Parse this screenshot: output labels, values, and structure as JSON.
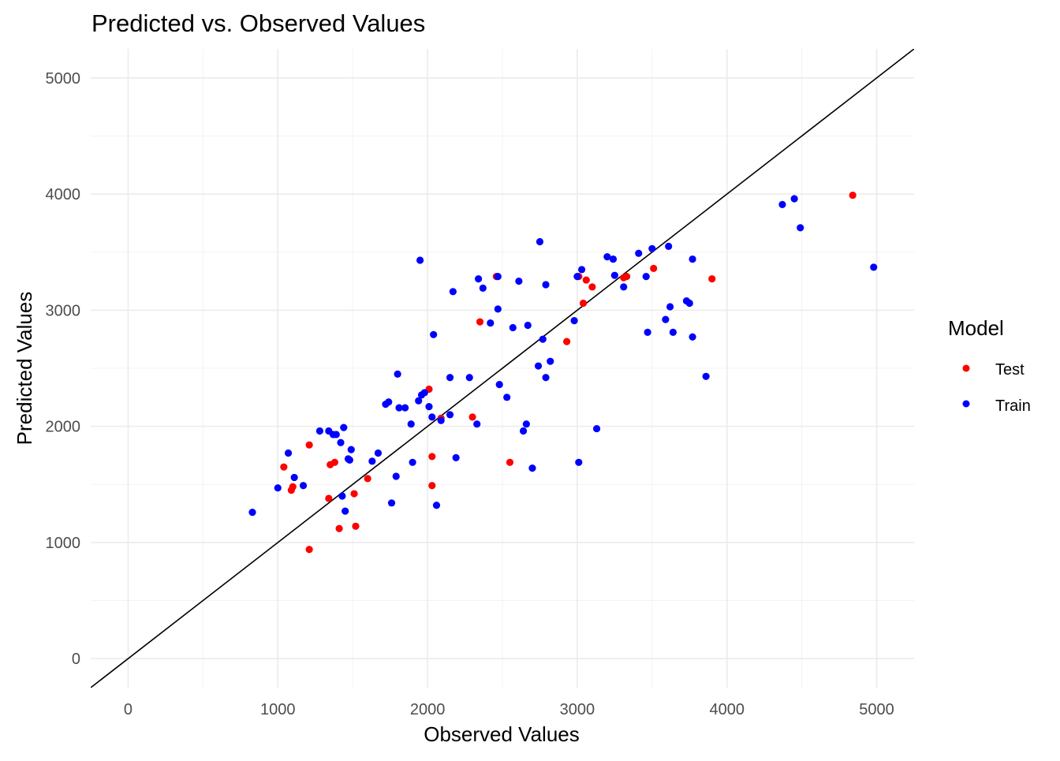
{
  "chart_data": {
    "type": "scatter",
    "title": "Predicted vs. Observed Values",
    "xlabel": "Observed Values",
    "ylabel": "Predicted Values",
    "xlim": [
      -250,
      5250
    ],
    "ylim": [
      -250,
      5250
    ],
    "x_ticks": [
      0,
      1000,
      2000,
      3000,
      4000,
      5000
    ],
    "y_ticks": [
      0,
      1000,
      2000,
      3000,
      4000,
      5000
    ],
    "x_tick_labels": [
      "0",
      "1000",
      "2000",
      "3000",
      "4000",
      "5000"
    ],
    "y_tick_labels": [
      "0",
      "1000",
      "2000",
      "3000",
      "4000",
      "5000"
    ],
    "grid": true,
    "legend_title": "Model",
    "legend_position": "right",
    "reference_line": {
      "slope": 1,
      "intercept": 0,
      "color": "#000000"
    },
    "series": [
      {
        "name": "Test",
        "color": "#ff0000",
        "points": [
          [
            1040,
            1650
          ],
          [
            1090,
            1450
          ],
          [
            1100,
            1480
          ],
          [
            1210,
            1840
          ],
          [
            1210,
            940
          ],
          [
            1340,
            1380
          ],
          [
            1350,
            1670
          ],
          [
            1380,
            1690
          ],
          [
            1410,
            1120
          ],
          [
            1510,
            1420
          ],
          [
            1520,
            1140
          ],
          [
            1600,
            1550
          ],
          [
            2010,
            2320
          ],
          [
            2030,
            1490
          ],
          [
            2030,
            1740
          ],
          [
            2090,
            2070
          ],
          [
            2300,
            2080
          ],
          [
            2350,
            2900
          ],
          [
            2460,
            3290
          ],
          [
            2550,
            1690
          ],
          [
            2930,
            2730
          ],
          [
            3010,
            3290
          ],
          [
            3040,
            3060
          ],
          [
            3060,
            3260
          ],
          [
            3100,
            3200
          ],
          [
            3310,
            3280
          ],
          [
            3330,
            3290
          ],
          [
            3510,
            3360
          ],
          [
            3900,
            3270
          ],
          [
            4840,
            3990
          ]
        ]
      },
      {
        "name": "Train",
        "color": "#0000ff",
        "points": [
          [
            830,
            1260
          ],
          [
            1000,
            1470
          ],
          [
            1070,
            1770
          ],
          [
            1110,
            1560
          ],
          [
            1170,
            1490
          ],
          [
            1280,
            1960
          ],
          [
            1340,
            1960
          ],
          [
            1370,
            1930
          ],
          [
            1390,
            1930
          ],
          [
            1420,
            1860
          ],
          [
            1430,
            1400
          ],
          [
            1440,
            1990
          ],
          [
            1450,
            1270
          ],
          [
            1470,
            1720
          ],
          [
            1480,
            1710
          ],
          [
            1490,
            1800
          ],
          [
            1630,
            1700
          ],
          [
            1670,
            1770
          ],
          [
            1720,
            2190
          ],
          [
            1740,
            2210
          ],
          [
            1760,
            1340
          ],
          [
            1790,
            1570
          ],
          [
            1800,
            2450
          ],
          [
            1810,
            2160
          ],
          [
            1850,
            2160
          ],
          [
            1890,
            2020
          ],
          [
            1900,
            1690
          ],
          [
            1940,
            2220
          ],
          [
            1950,
            3430
          ],
          [
            1960,
            2270
          ],
          [
            1980,
            2290
          ],
          [
            2010,
            2170
          ],
          [
            2030,
            2080
          ],
          [
            2040,
            2790
          ],
          [
            2060,
            1320
          ],
          [
            2090,
            2050
          ],
          [
            2150,
            2100
          ],
          [
            2150,
            2420
          ],
          [
            2170,
            3160
          ],
          [
            2190,
            1730
          ],
          [
            2280,
            2420
          ],
          [
            2330,
            2020
          ],
          [
            2340,
            3270
          ],
          [
            2370,
            3190
          ],
          [
            2420,
            2890
          ],
          [
            2470,
            3290
          ],
          [
            2470,
            3010
          ],
          [
            2480,
            2360
          ],
          [
            2530,
            2250
          ],
          [
            2570,
            2850
          ],
          [
            2610,
            3250
          ],
          [
            2640,
            1960
          ],
          [
            2660,
            2020
          ],
          [
            2670,
            2870
          ],
          [
            2700,
            1640
          ],
          [
            2740,
            2520
          ],
          [
            2750,
            3590
          ],
          [
            2770,
            2750
          ],
          [
            2790,
            2420
          ],
          [
            2790,
            3220
          ],
          [
            2820,
            2560
          ],
          [
            2980,
            2910
          ],
          [
            3000,
            3290
          ],
          [
            3010,
            1690
          ],
          [
            3030,
            3350
          ],
          [
            3130,
            1980
          ],
          [
            3200,
            3460
          ],
          [
            3240,
            3440
          ],
          [
            3250,
            3300
          ],
          [
            3310,
            3200
          ],
          [
            3410,
            3490
          ],
          [
            3460,
            3290
          ],
          [
            3470,
            2810
          ],
          [
            3500,
            3530
          ],
          [
            3590,
            2920
          ],
          [
            3610,
            3550
          ],
          [
            3620,
            3030
          ],
          [
            3640,
            2810
          ],
          [
            3730,
            3080
          ],
          [
            3750,
            3060
          ],
          [
            3770,
            3440
          ],
          [
            3770,
            2770
          ],
          [
            3860,
            2430
          ],
          [
            4370,
            3910
          ],
          [
            4450,
            3960
          ],
          [
            4490,
            3710
          ],
          [
            4980,
            3370
          ]
        ]
      }
    ]
  }
}
